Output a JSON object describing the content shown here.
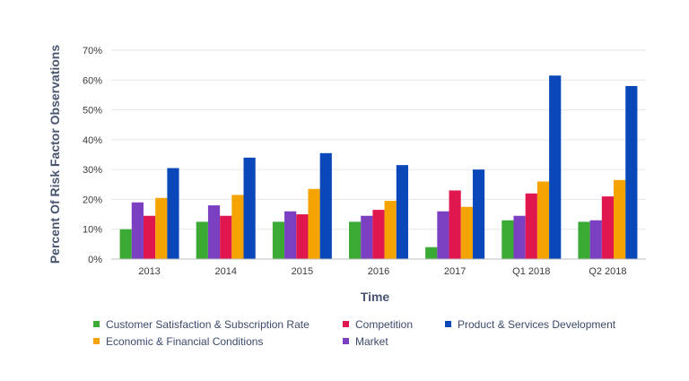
{
  "chart_data": {
    "type": "bar",
    "xlabel": "Time",
    "ylabel": "Percent Of Risk Factor Observations",
    "ylim": [
      0,
      70
    ],
    "yticks": [
      "0%",
      "10%",
      "20%",
      "30%",
      "40%",
      "50%",
      "60%",
      "70%"
    ],
    "categories": [
      "2013",
      "2014",
      "2015",
      "2016",
      "2017",
      "Q1 2018",
      "Q2 2018"
    ],
    "grid": "horizontal",
    "legend_position": "bottom",
    "series": [
      {
        "name": "Customer Satisfaction & Subscription Rate",
        "color": "#3aaa35",
        "values": [
          10,
          12.5,
          12.5,
          12.5,
          4,
          13,
          12.5
        ]
      },
      {
        "name": "Market",
        "color": "#7b3fc2",
        "values": [
          19,
          18,
          16,
          14.5,
          16,
          14.5,
          13
        ]
      },
      {
        "name": "Competition",
        "color": "#e0174f",
        "values": [
          14.5,
          14.5,
          15,
          16.5,
          23,
          22,
          21
        ]
      },
      {
        "name": "Economic & Financial Conditions",
        "color": "#f5a300",
        "values": [
          20.5,
          21.5,
          23.5,
          19.5,
          17.5,
          26,
          26.5
        ]
      },
      {
        "name": "Product & Services Development",
        "color": "#0a47b8",
        "values": [
          30.5,
          34,
          35.5,
          31.5,
          30,
          61.5,
          58
        ]
      }
    ]
  }
}
